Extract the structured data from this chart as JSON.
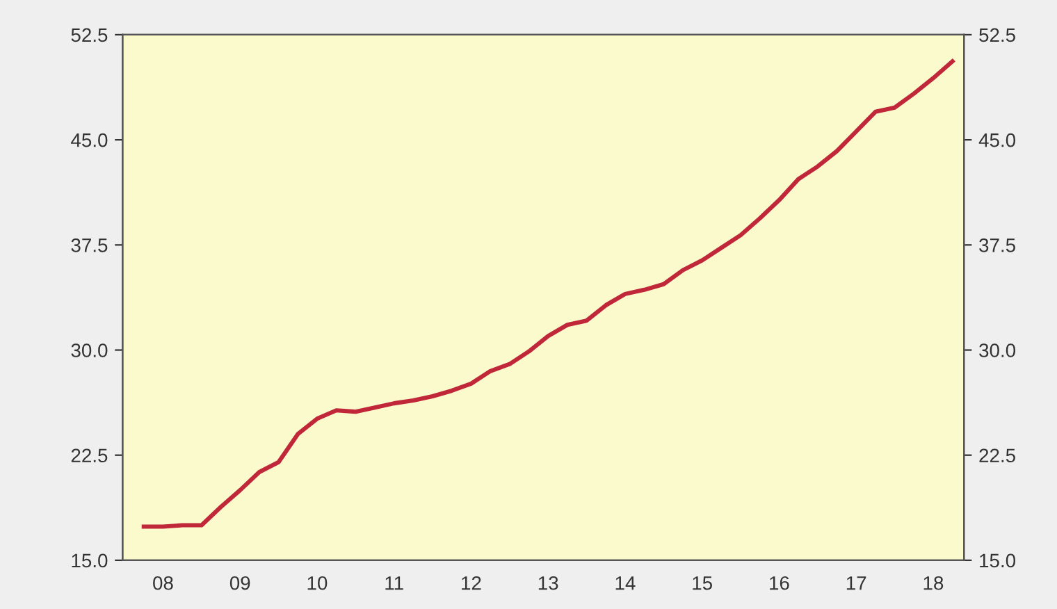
{
  "chart_data": {
    "type": "line",
    "categories": [
      null,
      "08",
      null,
      null,
      null,
      "09",
      null,
      null,
      null,
      "10",
      null,
      null,
      null,
      "11",
      null,
      null,
      null,
      "12",
      null,
      null,
      null,
      "13",
      null,
      null,
      null,
      "14",
      null,
      null,
      null,
      "15",
      null,
      null,
      null,
      "16",
      null,
      null,
      null,
      "17",
      null,
      null,
      null,
      "18",
      null
    ],
    "series": [
      {
        "color": "#c0283a",
        "values": [
          17.4,
          17.4,
          17.5,
          17.5,
          18.8,
          20.0,
          21.3,
          22.0,
          24.0,
          25.1,
          25.7,
          25.6,
          25.9,
          26.2,
          26.4,
          26.7,
          27.1,
          27.6,
          28.5,
          29.0,
          29.9,
          31.0,
          31.8,
          32.1,
          33.2,
          34.0,
          34.3,
          34.7,
          35.7,
          36.4,
          37.3,
          38.2,
          39.4,
          40.7,
          42.2,
          43.1,
          44.2,
          45.6,
          47.0,
          47.3,
          48.3,
          49.4,
          50.6
        ]
      }
    ],
    "ylim": [
      15.0,
      52.5
    ],
    "yticks": [
      {
        "value": 15,
        "label": "15.0"
      },
      {
        "value": 22.5,
        "label": "22.5"
      },
      {
        "value": 30,
        "label": "30.0"
      },
      {
        "value": 37.5,
        "label": "37.5"
      },
      {
        "value": 45,
        "label": "45.0"
      },
      {
        "value": 52.5,
        "label": "52.5"
      }
    ],
    "y2lim": [
      15.0,
      52.5
    ],
    "y2ticks": [
      {
        "value": 15,
        "label": "15.0"
      },
      {
        "value": 22.5,
        "label": "22.5"
      },
      {
        "value": 30,
        "label": "30.0"
      },
      {
        "value": 37.5,
        "label": "37.5"
      },
      {
        "value": 45,
        "label": "45.0"
      },
      {
        "value": 52.5,
        "label": "52.5"
      }
    ],
    "grid": false,
    "legend": false,
    "marker": "none",
    "line_style": "solid"
  }
}
